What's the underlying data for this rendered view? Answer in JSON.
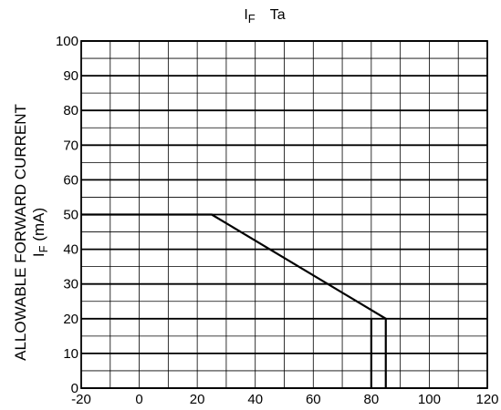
{
  "chart_data": {
    "type": "line",
    "title": {
      "prefix": "I",
      "sub": "F",
      "suffix": "Ta"
    },
    "ylabel": {
      "line1": "ALLOWABLE FORWARD CURRENT",
      "line2_prefix": "I",
      "line2_sub": "F",
      "line2_suffix": " (mA)"
    },
    "xlabel": "",
    "xlim": [
      -20,
      120
    ],
    "ylim": [
      0,
      100
    ],
    "xticks": [
      -20,
      0,
      20,
      40,
      60,
      80,
      100,
      120
    ],
    "yticks": [
      0,
      10,
      20,
      30,
      40,
      50,
      60,
      70,
      80,
      90,
      100
    ],
    "grid": true,
    "minor_grid": {
      "x_step": 10,
      "y_step": 5
    },
    "series": [
      {
        "x": [
          -20,
          25,
          85,
          85
        ],
        "y": [
          50,
          50,
          20,
          0
        ]
      }
    ],
    "markers": [
      {
        "x": 80,
        "y_from": 0,
        "y_to": 20
      }
    ]
  }
}
